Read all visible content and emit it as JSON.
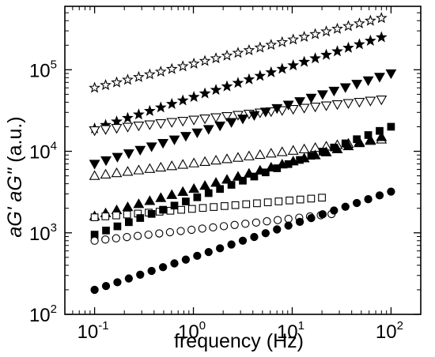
{
  "chart_data": {
    "type": "scatter",
    "title": "",
    "xlabel": "frequency (Hz)",
    "ylabel": "aG' aG'' (a.u.)",
    "ylabel_parts": [
      "aG'",
      "aG''",
      "(a.u.)"
    ],
    "x_scale": "log",
    "y_scale": "log",
    "xlim": [
      0.05,
      200
    ],
    "ylim": [
      100,
      600000
    ],
    "x_ticks": [
      {
        "base": "10",
        "exp": "-1",
        "value": 0.1
      },
      {
        "base": "10",
        "exp": "0",
        "value": 1
      },
      {
        "base": "10",
        "exp": "1",
        "value": 10
      },
      {
        "base": "10",
        "exp": "2",
        "value": 100
      }
    ],
    "y_ticks": [
      {
        "base": "10",
        "exp": "2",
        "value": 100
      },
      {
        "base": "10",
        "exp": "3",
        "value": 1000
      },
      {
        "base": "10",
        "exp": "4",
        "value": 10000
      },
      {
        "base": "10",
        "exp": "5",
        "value": 100000
      }
    ],
    "grid": false,
    "legend": "none",
    "series": [
      {
        "marker": "star-open",
        "x_range": [
          0.1,
          80
        ],
        "n": 27,
        "y_start": 60000,
        "y_end": 430000
      },
      {
        "marker": "star-filled",
        "x_range": [
          0.1,
          80
        ],
        "n": 27,
        "y_start": 19000,
        "y_end": 250000
      },
      {
        "marker": "triangle-down-open",
        "x_range": [
          0.1,
          80
        ],
        "n": 27,
        "y_start": 18000,
        "y_end": 43000
      },
      {
        "marker": "triangle-down-filled",
        "x_range": [
          0.1,
          100
        ],
        "n": 27,
        "y_start": 7000,
        "y_end": 90000
      },
      {
        "marker": "triangle-up-open",
        "x_range": [
          0.1,
          80
        ],
        "n": 27,
        "y_start": 5000,
        "y_end": 14000
      },
      {
        "marker": "triangle-up-filled",
        "x_range": [
          0.1,
          80
        ],
        "n": 27,
        "y_start": 1600,
        "y_end": 15000
      },
      {
        "marker": "square-open",
        "x_range": [
          0.1,
          20
        ],
        "n": 22,
        "y_start": 1550,
        "y_end": 2700
      },
      {
        "marker": "square-filled",
        "x_range": [
          0.1,
          100
        ],
        "n": 27,
        "y_start": 950,
        "y_end": 20000
      },
      {
        "marker": "circle-open",
        "x_range": [
          0.1,
          25
        ],
        "n": 23,
        "y_start": 800,
        "y_end": 1700
      },
      {
        "marker": "circle-filled",
        "x_range": [
          0.1,
          100
        ],
        "n": 27,
        "y_start": 200,
        "y_end": 3200
      }
    ]
  }
}
